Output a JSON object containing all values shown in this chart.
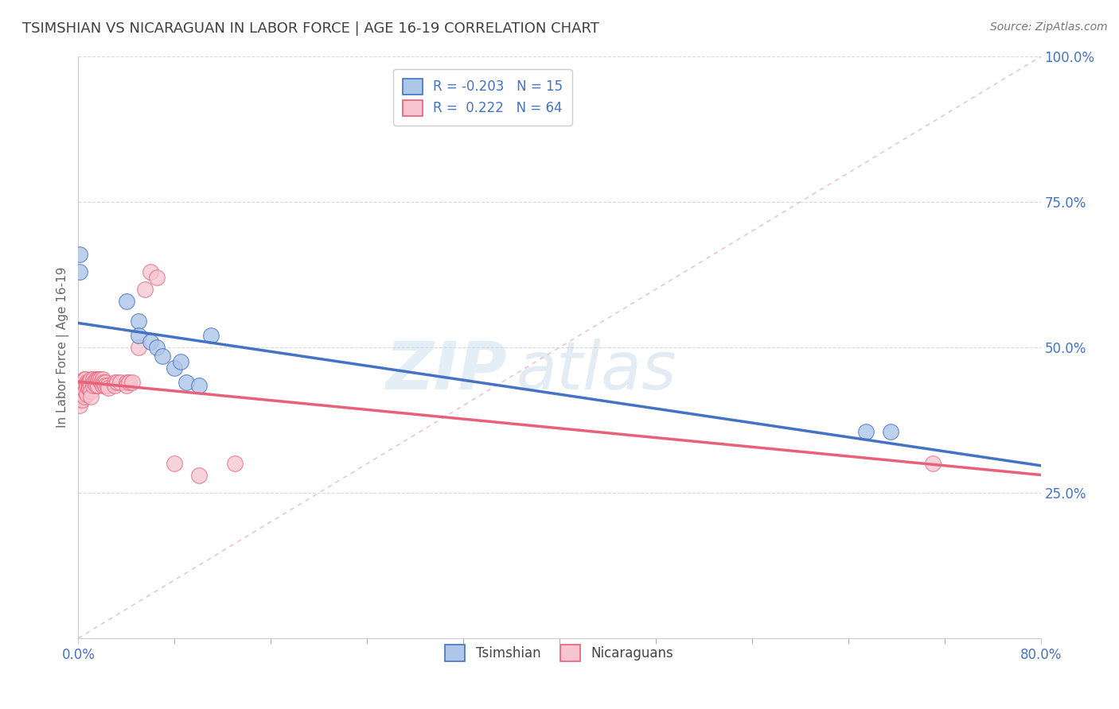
{
  "title": "TSIMSHIAN VS NICARAGUAN IN LABOR FORCE | AGE 16-19 CORRELATION CHART",
  "source": "Source: ZipAtlas.com",
  "ylabel": "In Labor Force | Age 16-19",
  "xlim": [
    0.0,
    0.8
  ],
  "ylim": [
    0.0,
    1.0
  ],
  "legend_label1": "Tsimshian",
  "legend_label2": "Nicaraguans",
  "R1": "-0.203",
  "N1": "15",
  "R2": "0.222",
  "N2": "64",
  "tsimshian_x": [
    0.001,
    0.001,
    0.04,
    0.05,
    0.05,
    0.06,
    0.065,
    0.07,
    0.08,
    0.085,
    0.09,
    0.1,
    0.11,
    0.655,
    0.675
  ],
  "tsimshian_y": [
    0.66,
    0.63,
    0.58,
    0.545,
    0.52,
    0.51,
    0.5,
    0.485,
    0.465,
    0.475,
    0.44,
    0.435,
    0.52,
    0.355,
    0.355
  ],
  "nicaraguan_x": [
    0.001,
    0.001,
    0.001,
    0.001,
    0.002,
    0.002,
    0.002,
    0.003,
    0.003,
    0.003,
    0.004,
    0.004,
    0.004,
    0.005,
    0.005,
    0.005,
    0.006,
    0.006,
    0.006,
    0.007,
    0.007,
    0.007,
    0.008,
    0.008,
    0.009,
    0.009,
    0.01,
    0.01,
    0.01,
    0.01,
    0.012,
    0.012,
    0.013,
    0.014,
    0.015,
    0.015,
    0.016,
    0.016,
    0.017,
    0.018,
    0.019,
    0.02,
    0.02,
    0.021,
    0.022,
    0.022,
    0.024,
    0.025,
    0.03,
    0.03,
    0.032,
    0.035,
    0.04,
    0.04,
    0.042,
    0.045,
    0.05,
    0.055,
    0.06,
    0.065,
    0.08,
    0.1,
    0.13,
    0.71
  ],
  "nicaraguan_y": [
    0.43,
    0.42,
    0.41,
    0.4,
    0.44,
    0.43,
    0.42,
    0.44,
    0.43,
    0.41,
    0.44,
    0.43,
    0.42,
    0.445,
    0.43,
    0.415,
    0.445,
    0.435,
    0.425,
    0.44,
    0.435,
    0.42,
    0.44,
    0.43,
    0.44,
    0.43,
    0.445,
    0.435,
    0.425,
    0.415,
    0.445,
    0.435,
    0.44,
    0.44,
    0.445,
    0.435,
    0.445,
    0.435,
    0.445,
    0.445,
    0.44,
    0.445,
    0.435,
    0.44,
    0.44,
    0.435,
    0.435,
    0.43,
    0.44,
    0.435,
    0.44,
    0.44,
    0.44,
    0.435,
    0.44,
    0.44,
    0.5,
    0.6,
    0.63,
    0.62,
    0.3,
    0.28,
    0.3,
    0.3
  ],
  "tsimshian_color": "#aec6e8",
  "nicaraguan_color": "#f7c5d0",
  "tsimshian_line_color": "#4472c4",
  "nicaraguan_line_color": "#e8607a",
  "diagonal_color": "#e8aab8",
  "background_color": "#ffffff",
  "grid_color": "#d0d0d0",
  "title_color": "#404040",
  "axis_label_color": "#4472c4",
  "watermark_zip": "ZIP",
  "watermark_atlas": "atlas"
}
